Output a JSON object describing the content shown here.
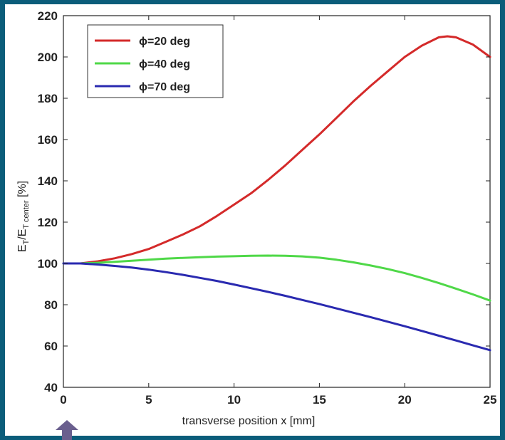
{
  "chart_data": {
    "type": "line",
    "title": "",
    "xlabel": "transverse position x [mm]",
    "ylabel_parts": {
      "e1": "E",
      "s1": "T",
      "slash": "/",
      "e2": "E",
      "s2": "T center",
      "unit": " [%]"
    },
    "xlim": [
      0,
      25
    ],
    "ylim": [
      40,
      220
    ],
    "x_ticks": [
      0,
      5,
      10,
      15,
      20,
      25
    ],
    "y_ticks": [
      40,
      60,
      80,
      100,
      120,
      140,
      160,
      180,
      200,
      220
    ],
    "grid": false,
    "legend_position": "top-left",
    "series": [
      {
        "name": "ϕ=20 deg",
        "color": "#d42a2a",
        "x": [
          0,
          1,
          2,
          3,
          4,
          5,
          6,
          7,
          8,
          9,
          10,
          11,
          12,
          13,
          14,
          15,
          16,
          17,
          18,
          19,
          20,
          21,
          22,
          22.5,
          23,
          24,
          25
        ],
        "y": [
          100,
          100,
          101,
          102.5,
          104.5,
          107,
          110.5,
          114,
          118,
          123,
          128.5,
          134,
          140.5,
          147.5,
          155,
          162.5,
          170.5,
          178.5,
          186,
          193,
          200,
          205.5,
          209.5,
          210,
          209.5,
          206,
          200
        ]
      },
      {
        "name": "ϕ=40 deg",
        "color": "#4fd848",
        "x": [
          0,
          1,
          2,
          3,
          4,
          5,
          6,
          7,
          8,
          9,
          10,
          11,
          12,
          13,
          14,
          15,
          16,
          17,
          18,
          19,
          20,
          21,
          22,
          23,
          24,
          25
        ],
        "y": [
          100,
          100,
          100.3,
          100.8,
          101.3,
          101.8,
          102.3,
          102.7,
          103,
          103.3,
          103.5,
          103.7,
          103.8,
          103.7,
          103.4,
          102.8,
          101.8,
          100.5,
          99,
          97.3,
          95.3,
          93,
          90.5,
          87.8,
          85,
          82
        ]
      },
      {
        "name": "ϕ=70 deg",
        "color": "#2a2ab0",
        "x": [
          0,
          1,
          2,
          3,
          4,
          5,
          6,
          7,
          8,
          9,
          10,
          11,
          12,
          13,
          14,
          15,
          16,
          17,
          18,
          19,
          20,
          21,
          22,
          23,
          24,
          25
        ],
        "y": [
          100,
          100,
          99.5,
          98.8,
          98,
          97,
          95.8,
          94.5,
          93,
          91.5,
          89.8,
          88,
          86.2,
          84.3,
          82.3,
          80.3,
          78.2,
          76.1,
          74,
          71.8,
          69.6,
          67.3,
          65,
          62.7,
          60.3,
          58
        ]
      }
    ]
  },
  "marker_arrow": {
    "color": "#6a5f8e"
  }
}
